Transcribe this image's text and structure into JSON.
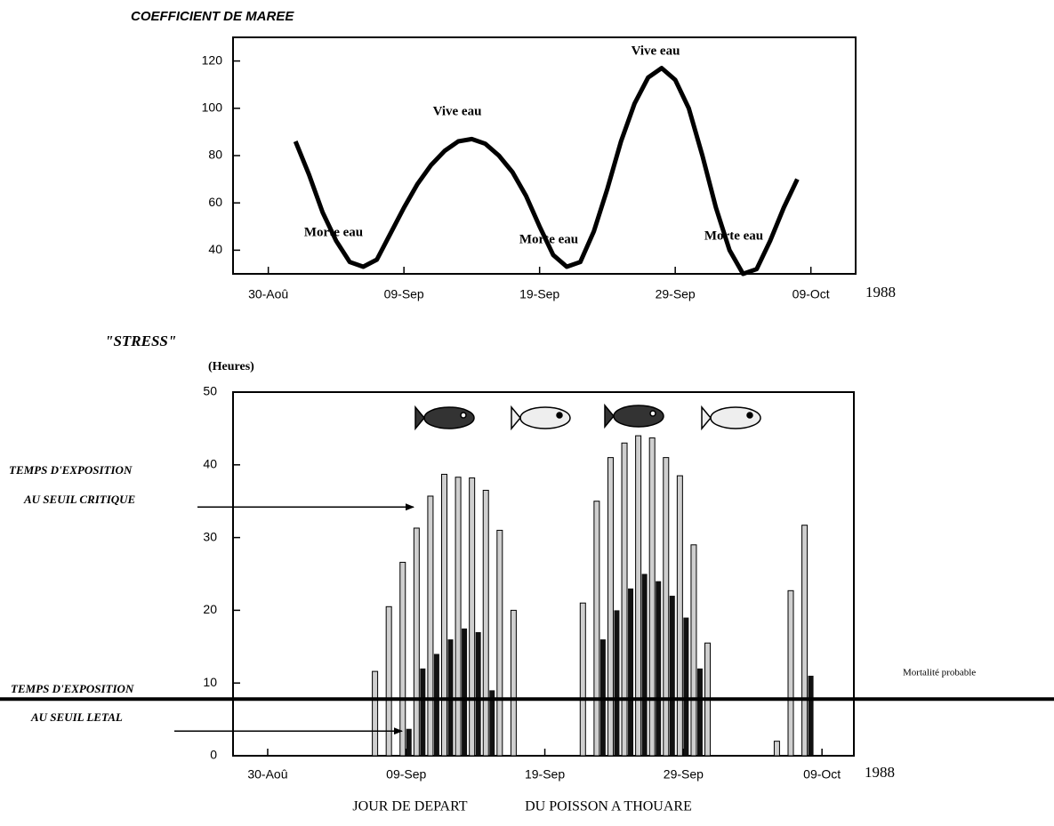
{
  "chart_data": [
    {
      "type": "line",
      "title": "COEFFICIENT DE MAREE",
      "year_label": "1988",
      "x": [
        245,
        246,
        247,
        248,
        249,
        250,
        251,
        252,
        253,
        254,
        255,
        256,
        257,
        258,
        259,
        260,
        261,
        262,
        263,
        264,
        265,
        266,
        267,
        268,
        269,
        270,
        271,
        272,
        273,
        274,
        275,
        276,
        277,
        278,
        279,
        280,
        281,
        282
      ],
      "values": [
        86,
        72,
        56,
        44,
        35,
        33,
        36,
        47,
        58,
        68,
        76,
        82,
        86,
        87,
        85,
        80,
        73,
        63,
        50,
        38,
        33,
        35,
        48,
        66,
        86,
        102,
        113,
        117,
        112,
        100,
        80,
        58,
        40,
        30,
        32,
        44,
        58,
        70
      ],
      "color": "#000000",
      "xlim": [
        240.4,
        286.3
      ],
      "xticks": [
        {
          "value": 243,
          "label": "30-Aoû"
        },
        {
          "value": 253,
          "label": "09-Sep"
        },
        {
          "value": 263,
          "label": "19-Sep"
        },
        {
          "value": 273,
          "label": "29-Sep"
        },
        {
          "value": 283,
          "label": "09-Oct"
        }
      ],
      "ylim": [
        30,
        130
      ],
      "yticks": [
        40,
        60,
        80,
        100,
        120
      ],
      "annotations": [
        "Vive eau",
        "Vive eau",
        "Morte eau",
        "Morte eau",
        "Morte eau"
      ]
    },
    {
      "type": "bar",
      "title": "\"STRESS\"",
      "ylabel": "(Heures)",
      "year_label": "1988",
      "xlabel": [
        "JOUR DE DEPART",
        "DU POISSON A THOUARE"
      ],
      "x": [
        251,
        252,
        253,
        254,
        255,
        256,
        257,
        258,
        259,
        260,
        261,
        266,
        267,
        268,
        269,
        270,
        271,
        272,
        273,
        274,
        275,
        280,
        281,
        282
      ],
      "series": [
        {
          "color": "#cfcfcf",
          "values": [
            11.6,
            20.5,
            26.6,
            31.3,
            35.7,
            38.7,
            38.3,
            38.2,
            36.5,
            31,
            20,
            21,
            35,
            41,
            43,
            44,
            43.7,
            41,
            38.5,
            29,
            15.5,
            2,
            22.7,
            31.7
          ]
        },
        {
          "color": "#111111",
          "values": [
            0,
            0,
            3.7,
            12,
            14,
            16,
            17.5,
            17,
            9,
            0,
            0,
            0,
            16,
            20,
            23,
            25,
            24,
            22,
            19,
            12,
            0,
            0,
            0,
            11
          ]
        }
      ],
      "xlim": [
        240.5,
        285.3
      ],
      "xticks": [
        {
          "value": 243,
          "label": "30-Aoû"
        },
        {
          "value": 253,
          "label": "09-Sep"
        },
        {
          "value": 263,
          "label": "19-Sep"
        },
        {
          "value": 273,
          "label": "29-Sep"
        },
        {
          "value": 283,
          "label": "09-Oct"
        }
      ],
      "ylim": [
        0,
        50
      ],
      "yticks": [
        0,
        10,
        20,
        30,
        40,
        50
      ],
      "reference_lines": [
        {
          "value": 7.8,
          "label": "Mortalité probable"
        }
      ],
      "arrows": [
        {
          "value": 34.2,
          "label": [
            "TEMPS D'EXPOSITION",
            "AU SEUIL CRITIQUE"
          ]
        },
        {
          "value": 3.4,
          "label": [
            "TEMPS D'EXPOSITION",
            "AU SEUIL LETAL"
          ]
        }
      ]
    }
  ]
}
